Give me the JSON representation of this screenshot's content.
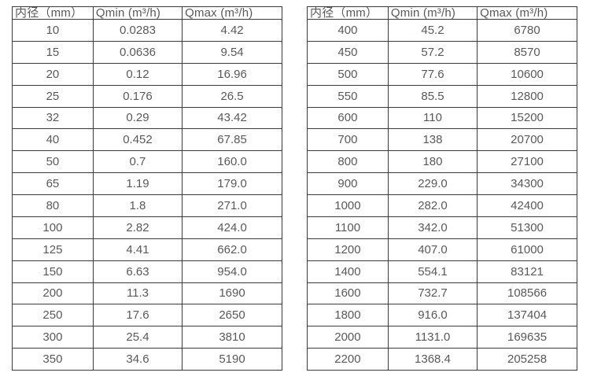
{
  "colors": {
    "background": "#ffffff",
    "border": "#3b3b3b",
    "text": "#595959"
  },
  "chart_data": [
    {
      "type": "table",
      "columns": [
        "内径（mm）",
        "Qmin (m³/h)",
        "Qmax (m³/h)"
      ],
      "rows": [
        [
          "10",
          "0.0283",
          "4.42"
        ],
        [
          "15",
          "0.0636",
          "9.54"
        ],
        [
          "20",
          "0.12",
          "16.96"
        ],
        [
          "25",
          "0.176",
          "26.5"
        ],
        [
          "32",
          "0.29",
          "43.42"
        ],
        [
          "40",
          "0.452",
          "67.85"
        ],
        [
          "50",
          "0.7",
          "160.0"
        ],
        [
          "65",
          "1.19",
          "179.0"
        ],
        [
          "80",
          "1.8",
          "271.0"
        ],
        [
          "100",
          "2.82",
          "424.0"
        ],
        [
          "125",
          "4.41",
          "662.0"
        ],
        [
          "150",
          "6.63",
          "954.0"
        ],
        [
          "200",
          "11.3",
          "1690"
        ],
        [
          "250",
          "17.6",
          "2650"
        ],
        [
          "300",
          "25.4",
          "3810"
        ],
        [
          "350",
          "34.6",
          "5190"
        ]
      ]
    },
    {
      "type": "table",
      "columns": [
        "内径（mm）",
        "Qmin (m³/h)",
        "Qmax (m³/h)"
      ],
      "rows": [
        [
          "400",
          "45.2",
          "6780"
        ],
        [
          "450",
          "57.2",
          "8570"
        ],
        [
          "500",
          "77.6",
          "10600"
        ],
        [
          "550",
          "85.5",
          "12800"
        ],
        [
          "600",
          "110",
          "15200"
        ],
        [
          "700",
          "138",
          "20700"
        ],
        [
          "800",
          "180",
          "27100"
        ],
        [
          "900",
          "229.0",
          "34300"
        ],
        [
          "1000",
          "282.0",
          "42400"
        ],
        [
          "1100",
          "342.0",
          "51300"
        ],
        [
          "1200",
          "407.0",
          "61000"
        ],
        [
          "1400",
          "554.1",
          "83121"
        ],
        [
          "1600",
          "732.7",
          "108566"
        ],
        [
          "1800",
          "916.0",
          "137404"
        ],
        [
          "2000",
          "1131.0",
          "169635"
        ],
        [
          "2200",
          "1368.4",
          "205258"
        ]
      ]
    }
  ]
}
